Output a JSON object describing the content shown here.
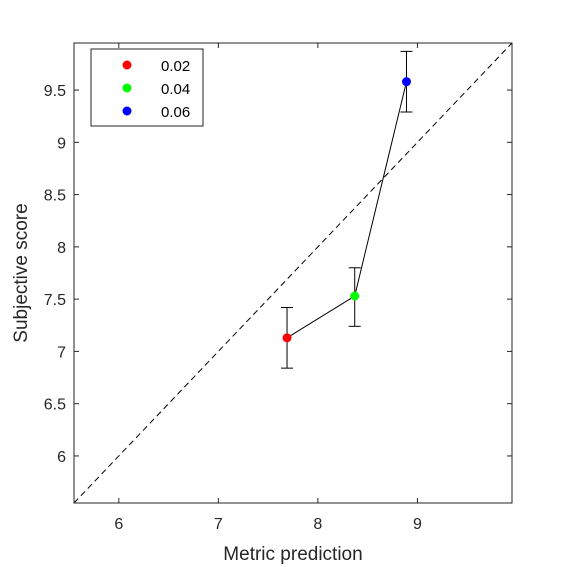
{
  "chart_data": {
    "type": "scatter",
    "xlabel": "Metric prediction",
    "ylabel": "Subjective score",
    "xlim": [
      5.55,
      9.95
    ],
    "ylim": [
      5.55,
      9.95
    ],
    "xticks": [
      6,
      7,
      8,
      9
    ],
    "yticks": [
      6,
      6.5,
      7,
      7.5,
      8,
      8.5,
      9,
      9.5
    ],
    "xtick_labels": [
      "6",
      "7",
      "8",
      "9"
    ],
    "ytick_labels": [
      "6",
      "6.5",
      "7",
      "7.5",
      "8",
      "8.5",
      "9",
      "9.5"
    ],
    "grid": false,
    "legend_position": "top-left",
    "reference_line": {
      "type": "identity",
      "style": "dashed",
      "color": "#000000"
    },
    "connect_points": true,
    "series": [
      {
        "name": "0.02",
        "color": "#ff0000",
        "x": 7.69,
        "y": 7.13,
        "err_low": 6.84,
        "err_high": 7.42
      },
      {
        "name": "0.04",
        "color": "#00ff00",
        "x": 8.37,
        "y": 7.53,
        "err_low": 7.24,
        "err_high": 7.8
      },
      {
        "name": "0.06",
        "color": "#0000ff",
        "x": 8.89,
        "y": 9.58,
        "err_low": 9.29,
        "err_high": 9.87
      }
    ]
  }
}
